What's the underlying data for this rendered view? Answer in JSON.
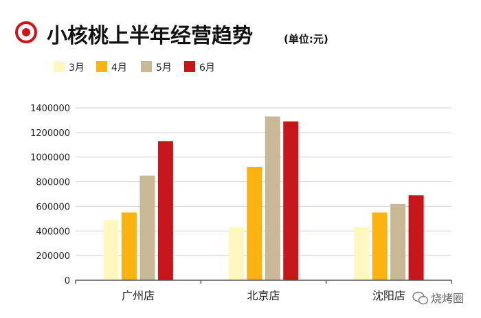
{
  "header": {
    "title": "小核桃上半年经营趋势",
    "unit": "(单位:元)"
  },
  "watermark": {
    "text": "烧烤圈",
    "icon": "wechat-icon"
  },
  "colors": {
    "title_marker": "#d0121b",
    "grid": "#cfcfcf",
    "axis": "#555555"
  },
  "chart_data": {
    "type": "bar",
    "categories": [
      "广州店",
      "北京店",
      "沈阳店"
    ],
    "series": [
      {
        "name": "3月",
        "color": "#fff7c0",
        "values": [
          490000,
          430000,
          430000
        ]
      },
      {
        "name": "4月",
        "color": "#fbb40f",
        "values": [
          550000,
          920000,
          550000
        ]
      },
      {
        "name": "5月",
        "color": "#c9b896",
        "values": [
          850000,
          1330000,
          620000
        ]
      },
      {
        "name": "6月",
        "color": "#c7151c",
        "values": [
          1130000,
          1290000,
          690000
        ]
      }
    ],
    "yticks": [
      "0",
      "200000",
      "400000",
      "600000",
      "800000",
      "1000000",
      "1200000",
      "1400000"
    ],
    "ylim": [
      0,
      1400000
    ],
    "grid": true,
    "legend": "top-left"
  }
}
